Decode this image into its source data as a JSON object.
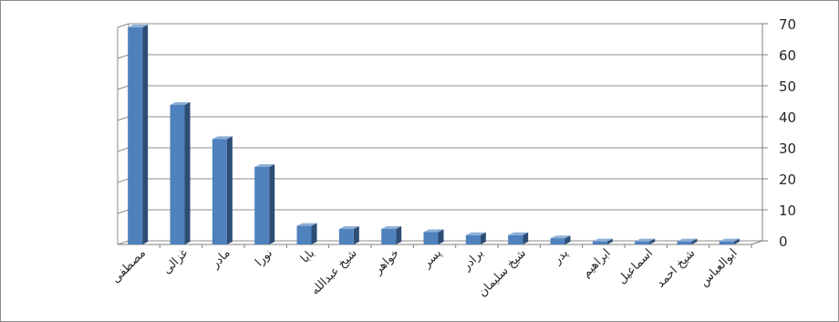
{
  "chart_data": {
    "type": "bar",
    "style": "3d-column",
    "y_axis_side": "right",
    "categories": [
      "مصطفی",
      "غزالی",
      "مادر",
      "نورا",
      "بابا",
      "شیخ عبدالله",
      "خواهر",
      "پسر",
      "برادر",
      "شیخ سلیمان",
      "پدر",
      "ابراهیم",
      "اسماعیل",
      "شیخ احمد",
      "ابوالعباس"
    ],
    "values": [
      70,
      45,
      34,
      25,
      6,
      5,
      5,
      4,
      3,
      3,
      2,
      1,
      1,
      1,
      1
    ],
    "yticks": [
      "0",
      "10",
      "20",
      "30",
      "40",
      "50",
      "60",
      "70"
    ],
    "ylim": [
      0,
      70
    ],
    "grid": true,
    "title": "",
    "xlabel": "",
    "ylabel": "",
    "colors": {
      "bar_front": "#4f81bd",
      "bar_side": "#2c4d75",
      "bar_top": "#8fb0d8",
      "grid": "#8c8c8c",
      "axis": "#7f7f7f"
    }
  }
}
